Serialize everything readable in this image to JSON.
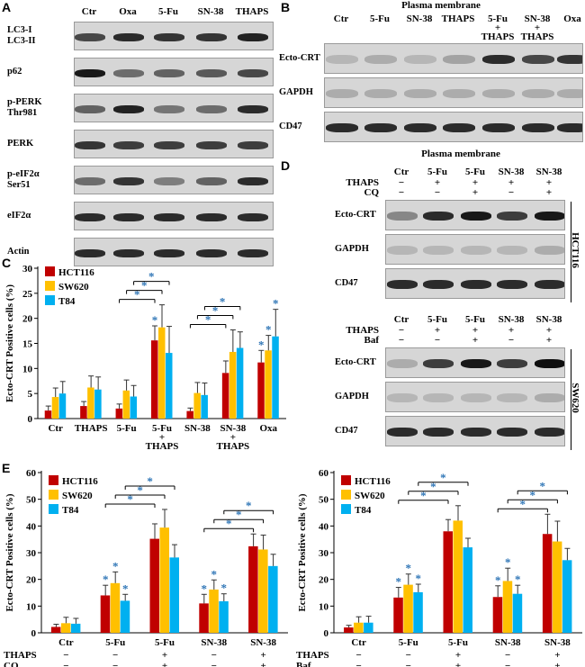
{
  "panels": {
    "A": {
      "letter": "A",
      "lanes": [
        "Ctr",
        "Oxa",
        "5-Fu",
        "SN-38",
        "THAPS"
      ],
      "rows": [
        {
          "label": "LC3-I\nLC3-II",
          "intensity": [
            0.7,
            0.85,
            0.8,
            0.8,
            0.9
          ]
        },
        {
          "label": "p62",
          "intensity": [
            0.95,
            0.5,
            0.55,
            0.6,
            0.7
          ]
        },
        {
          "label": "p-PERK\nThr981",
          "intensity": [
            0.55,
            0.9,
            0.45,
            0.5,
            0.85
          ]
        },
        {
          "label": "PERK",
          "intensity": [
            0.8,
            0.75,
            0.75,
            0.75,
            0.75
          ]
        },
        {
          "label": "p-eIF2α\nSer51",
          "intensity": [
            0.5,
            0.8,
            0.4,
            0.55,
            0.85
          ]
        },
        {
          "label": "eIF2α",
          "intensity": [
            0.85,
            0.85,
            0.85,
            0.85,
            0.85
          ]
        },
        {
          "label": "Actin",
          "intensity": [
            0.85,
            0.85,
            0.85,
            0.85,
            0.85
          ]
        }
      ]
    },
    "B": {
      "letter": "B",
      "title": "Plasma membrane",
      "lanes": [
        "Ctr",
        "5-Fu",
        "SN-38",
        "THAPS",
        "5-Fu\n+\nTHAPS",
        "SN-38\n+\nTHAPS",
        "Oxa"
      ],
      "rows": [
        {
          "label": "Ecto-CRT",
          "intensity": [
            0.1,
            0.15,
            0.1,
            0.2,
            0.85,
            0.7,
            0.8
          ]
        },
        {
          "label": "GAPDH",
          "intensity": [
            0.15,
            0.15,
            0.15,
            0.15,
            0.15,
            0.15,
            0.15
          ]
        },
        {
          "label": "CD47",
          "intensity": [
            0.85,
            0.85,
            0.85,
            0.85,
            0.85,
            0.85,
            0.85
          ]
        }
      ]
    },
    "D": {
      "letter": "D",
      "title": "Plasma membrane",
      "lanes": [
        "Ctr",
        "5-Fu",
        "5-Fu",
        "SN-38",
        "SN-38"
      ],
      "top": {
        "cond_rows": [
          {
            "label": "THAPS",
            "signs": [
              "−",
              "+",
              "+",
              "+",
              "+"
            ]
          },
          {
            "label": "CQ",
            "signs": [
              "−",
              "−",
              "+",
              "−",
              "+"
            ]
          }
        ],
        "cell_line": "HCT116",
        "rows": [
          {
            "label": "Ecto-CRT",
            "intensity": [
              0.35,
              0.85,
              0.95,
              0.75,
              0.95
            ]
          },
          {
            "label": "GAPDH",
            "intensity": [
              0.1,
              0.1,
              0.1,
              0.1,
              0.15
            ]
          },
          {
            "label": "CD47",
            "intensity": [
              0.85,
              0.85,
              0.85,
              0.85,
              0.85
            ]
          }
        ]
      },
      "bottom": {
        "cond_rows": [
          {
            "label": "THAPS",
            "signs": [
              "−",
              "+",
              "+",
              "+",
              "+"
            ]
          },
          {
            "label": "Baf",
            "signs": [
              "−",
              "−",
              "+",
              "−",
              "+"
            ]
          }
        ],
        "cell_line": "SW620",
        "rows": [
          {
            "label": "Ecto-CRT",
            "intensity": [
              0.15,
              0.75,
              0.95,
              0.75,
              1.0
            ]
          },
          {
            "label": "GAPDH",
            "intensity": [
              0.1,
              0.1,
              0.1,
              0.1,
              0.15
            ]
          },
          {
            "label": "CD47",
            "intensity": [
              0.85,
              0.85,
              0.85,
              0.85,
              0.85
            ]
          }
        ]
      }
    }
  },
  "chart_data": [
    {
      "id": "C",
      "letter": "C",
      "type": "bar",
      "ylabel": "Ecto-CRT Positive cells (%)",
      "ylim": [
        0,
        30
      ],
      "yticks": [
        0,
        5,
        10,
        15,
        20,
        25,
        30
      ],
      "categories": [
        "Ctr",
        "THAPS",
        "5-Fu",
        "5-Fu\n+\nTHAPS",
        "SN-38",
        "SN-38\n+\nTHAPS",
        "Oxa"
      ],
      "series": [
        {
          "name": "HCT116",
          "color": "#c00000",
          "values": [
            1.6,
            2.5,
            2.0,
            15.6,
            1.5,
            9.1,
            11.2
          ],
          "errors": [
            0.9,
            0.9,
            0.9,
            2.9,
            0.6,
            2.4,
            2.4
          ]
        },
        {
          "name": "SW620",
          "color": "#ffc000",
          "values": [
            4.3,
            6.2,
            5.6,
            18.2,
            5.1,
            13.3,
            13.6
          ],
          "errors": [
            1.8,
            2.3,
            2.1,
            4.5,
            2.1,
            4.4,
            3.0
          ]
        },
        {
          "name": "T84",
          "color": "#00b0f0",
          "values": [
            5.0,
            5.8,
            4.4,
            13.1,
            4.7,
            14.1,
            16.4
          ],
          "errors": [
            2.4,
            2.5,
            2.2,
            5.3,
            2.4,
            3.2,
            5.4
          ]
        }
      ],
      "sig_stars": [
        [
          0,
          0,
          0,
          1,
          0,
          0,
          1
        ],
        [
          0,
          0,
          0,
          0,
          0,
          0,
          1
        ],
        [
          0,
          0,
          0,
          0,
          0,
          0,
          1
        ]
      ],
      "brackets": [
        {
          "from": [
            2,
            0
          ],
          "to": [
            3,
            0
          ],
          "level": 1
        },
        {
          "from": [
            2,
            1
          ],
          "to": [
            3,
            1
          ],
          "level": 2
        },
        {
          "from": [
            2,
            2
          ],
          "to": [
            3,
            2
          ],
          "level": 3
        },
        {
          "from": [
            4,
            0
          ],
          "to": [
            5,
            0
          ],
          "level": 1
        },
        {
          "from": [
            4,
            1
          ],
          "to": [
            5,
            1
          ],
          "level": 2
        },
        {
          "from": [
            4,
            2
          ],
          "to": [
            5,
            2
          ],
          "level": 3
        }
      ],
      "star": "*"
    },
    {
      "id": "E1",
      "letter": "E",
      "type": "bar",
      "ylabel": "Ecto-CRT Positive cells (%)",
      "ylim": [
        0,
        60
      ],
      "yticks": [
        0,
        10,
        20,
        30,
        40,
        50,
        60
      ],
      "categories": [
        "Ctr",
        "5-Fu",
        "5-Fu",
        "SN-38",
        "SN-38"
      ],
      "cond_rows": [
        {
          "label": "THAPS",
          "signs": [
            "−",
            "−",
            "+",
            "−",
            "+"
          ]
        },
        {
          "label": "CQ",
          "signs": [
            "−",
            "−",
            "+",
            "−",
            "+"
          ]
        }
      ],
      "series": [
        {
          "name": "HCT116",
          "color": "#c00000",
          "values": [
            2.2,
            14.0,
            35.2,
            11.0,
            32.4
          ],
          "errors": [
            1.0,
            3.8,
            5.6,
            3.4,
            4.6
          ]
        },
        {
          "name": "SW620",
          "color": "#ffc000",
          "values": [
            3.6,
            18.6,
            39.4,
            16.2,
            31.2
          ],
          "errors": [
            2.2,
            4.2,
            6.8,
            3.6,
            5.4
          ]
        },
        {
          "name": "T84",
          "color": "#00b0f0",
          "values": [
            3.4,
            12.0,
            28.2,
            11.8,
            25.0
          ],
          "errors": [
            2.0,
            2.4,
            4.8,
            2.8,
            4.4
          ]
        }
      ],
      "sig_stars": [
        [
          0,
          1,
          0,
          1,
          0
        ],
        [
          0,
          1,
          0,
          1,
          0
        ],
        [
          0,
          1,
          0,
          1,
          0
        ]
      ],
      "brackets": [
        {
          "from": [
            1,
            0
          ],
          "to": [
            2,
            0
          ],
          "level": 1
        },
        {
          "from": [
            1,
            1
          ],
          "to": [
            2,
            1
          ],
          "level": 2
        },
        {
          "from": [
            1,
            2
          ],
          "to": [
            2,
            2
          ],
          "level": 3
        },
        {
          "from": [
            3,
            0
          ],
          "to": [
            4,
            0
          ],
          "level": 1
        },
        {
          "from": [
            3,
            1
          ],
          "to": [
            4,
            1
          ],
          "level": 2
        },
        {
          "from": [
            3,
            2
          ],
          "to": [
            4,
            2
          ],
          "level": 3
        }
      ],
      "star": "*"
    },
    {
      "id": "E2",
      "letter": "",
      "type": "bar",
      "ylabel": "Ecto-CRT Positive cells (%)",
      "ylim": [
        0,
        60
      ],
      "yticks": [
        0,
        10,
        20,
        30,
        40,
        50,
        60
      ],
      "categories": [
        "Ctr",
        "5-Fu",
        "5-Fu",
        "SN-38",
        "SN-38"
      ],
      "cond_rows": [
        {
          "label": "THAPS",
          "signs": [
            "−",
            "−",
            "+",
            "−",
            "+"
          ]
        },
        {
          "label": "Baf",
          "signs": [
            "−",
            "−",
            "+",
            "−",
            "+"
          ]
        }
      ],
      "series": [
        {
          "name": "HCT116",
          "color": "#c00000",
          "values": [
            2.0,
            13.2,
            38.0,
            13.4,
            37.0
          ],
          "errors": [
            0.8,
            3.8,
            4.4,
            4.2,
            7.4
          ]
        },
        {
          "name": "SW620",
          "color": "#ffc000",
          "values": [
            3.8,
            18.0,
            42.0,
            19.4,
            34.2
          ],
          "errors": [
            2.2,
            4.0,
            5.6,
            4.8,
            7.6
          ]
        },
        {
          "name": "T84",
          "color": "#00b0f0",
          "values": [
            3.8,
            15.2,
            32.0,
            14.6,
            27.2
          ],
          "errors": [
            2.4,
            3.0,
            3.4,
            3.2,
            4.4
          ]
        }
      ],
      "sig_stars": [
        [
          0,
          1,
          0,
          1,
          0
        ],
        [
          0,
          1,
          0,
          1,
          0
        ],
        [
          0,
          1,
          0,
          1,
          0
        ]
      ],
      "brackets": [
        {
          "from": [
            1,
            0
          ],
          "to": [
            2,
            0
          ],
          "level": 1
        },
        {
          "from": [
            1,
            1
          ],
          "to": [
            2,
            1
          ],
          "level": 2
        },
        {
          "from": [
            1,
            2
          ],
          "to": [
            2,
            2
          ],
          "level": 3
        },
        {
          "from": [
            3,
            0
          ],
          "to": [
            4,
            0
          ],
          "level": 1
        },
        {
          "from": [
            3,
            1
          ],
          "to": [
            4,
            1
          ],
          "level": 2
        },
        {
          "from": [
            3,
            2
          ],
          "to": [
            4,
            2
          ],
          "level": 3
        }
      ],
      "star": "*"
    }
  ]
}
